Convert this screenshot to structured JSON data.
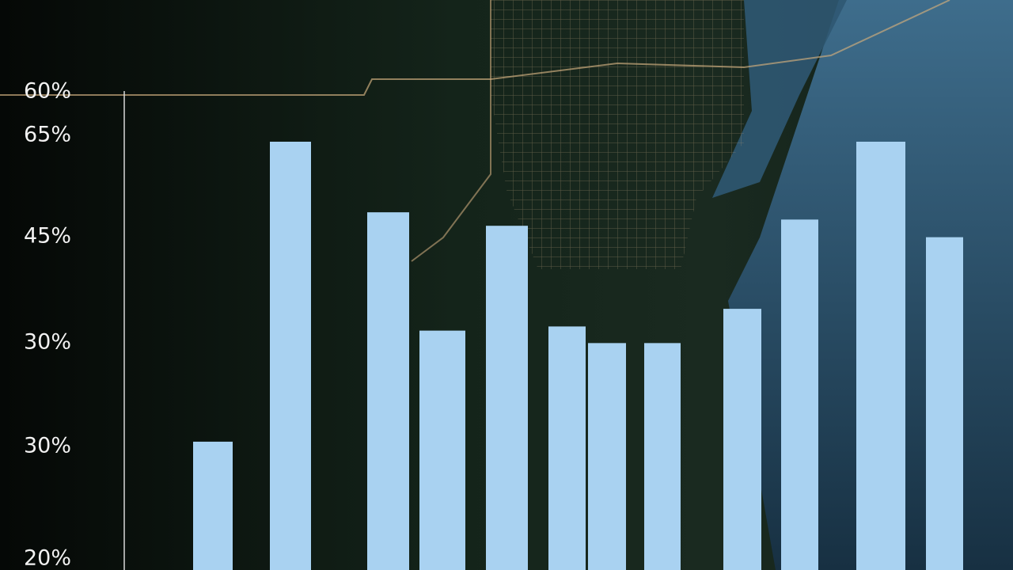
{
  "chart_data": {
    "type": "bar",
    "categories": [
      null,
      null,
      null,
      null,
      null,
      null,
      null,
      null,
      null,
      null,
      null,
      null
    ],
    "values": [
      31.6,
      60.5,
      53.7,
      42.3,
      52.4,
      42.7,
      41.1,
      41.1,
      44.4,
      53.0,
      60.5,
      51.3
    ],
    "color": "#a9d2f1",
    "ylim": [
      20,
      65
    ],
    "y_labels": [
      "60%",
      "65%",
      "45%",
      "30%",
      "30%",
      "20%"
    ],
    "grid": true
  }
}
